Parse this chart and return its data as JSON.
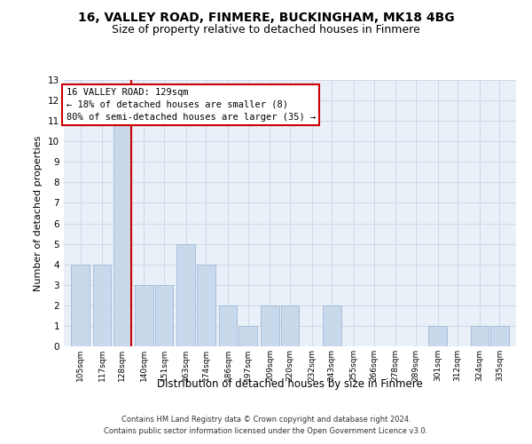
{
  "title1": "16, VALLEY ROAD, FINMERE, BUCKINGHAM, MK18 4BG",
  "title2": "Size of property relative to detached houses in Finmere",
  "xlabel": "Distribution of detached houses by size in Finmere",
  "ylabel": "Number of detached properties",
  "footnote1": "Contains HM Land Registry data © Crown copyright and database right 2024.",
  "footnote2": "Contains public sector information licensed under the Open Government Licence v3.0.",
  "annotation_title": "16 VALLEY ROAD: 129sqm",
  "annotation_line1": "← 18% of detached houses are smaller (8)",
  "annotation_line2": "80% of semi-detached houses are larger (35) →",
  "bar_color": "#c9d9ec",
  "bar_edge_color": "#a0b8d8",
  "vline_color": "#cc0000",
  "annotation_box_color": "#ffffff",
  "annotation_box_edge": "#cc0000",
  "categories": [
    105,
    117,
    128,
    140,
    151,
    163,
    174,
    186,
    197,
    209,
    220,
    232,
    243,
    255,
    266,
    278,
    289,
    301,
    312,
    324,
    335
  ],
  "values": [
    4,
    4,
    11,
    3,
    3,
    5,
    4,
    2,
    1,
    2,
    2,
    0,
    2,
    0,
    0,
    0,
    0,
    1,
    0,
    1,
    1
  ],
  "ylim": [
    0,
    13
  ],
  "yticks": [
    0,
    1,
    2,
    3,
    4,
    5,
    6,
    7,
    8,
    9,
    10,
    11,
    12,
    13
  ],
  "grid_color": "#d0d8e8",
  "bg_color": "#eaf0f8"
}
